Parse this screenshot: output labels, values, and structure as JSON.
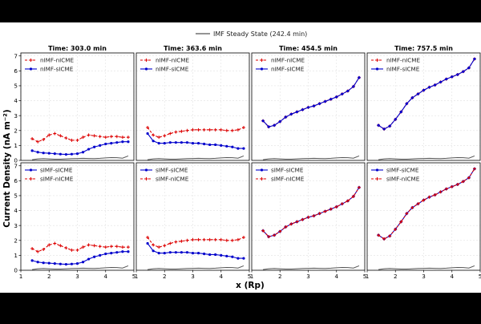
{
  "figure": {
    "top_legend": {
      "label": "IMF Steady State (242.4 min)",
      "color": "#555555"
    },
    "ylabel": "Current Density (nA m⁻²)",
    "xlabel": "x (Rp)"
  },
  "chart_data": {
    "type": "line",
    "xlim": [
      1,
      5
    ],
    "ylim": [
      0,
      7.2
    ],
    "xticks": [
      "1",
      "2",
      "3",
      "4",
      "5"
    ],
    "yticks": [
      "0",
      "1",
      "2",
      "3",
      "4",
      "5",
      "6",
      "7"
    ],
    "grid": true,
    "legend_position": "top-left",
    "x": [
      1.4,
      1.6,
      1.8,
      2.0,
      2.2,
      2.4,
      2.6,
      2.8,
      3.0,
      3.2,
      3.4,
      3.6,
      3.8,
      4.0,
      4.2,
      4.4,
      4.6,
      4.8
    ],
    "steady_state": [
      0.05,
      0.1,
      0.12,
      0.1,
      0.08,
      0.08,
      0.1,
      0.12,
      0.13,
      0.14,
      0.13,
      0.12,
      0.14,
      0.17,
      0.19,
      0.18,
      0.15,
      0.3
    ],
    "times": [
      "Time: 303.0 min",
      "Time: 363.6 min",
      "Time: 454.5 min",
      "Time: 757.5 min"
    ],
    "rows": [
      {
        "legend": [
          "nIMF-nICME",
          "nIMF-sICME"
        ],
        "series_colors": [
          "#dd0000",
          "#0000cc"
        ]
      },
      {
        "legend": [
          "sIMF-sICME",
          "sIMF-nICME"
        ],
        "series_colors": [
          "#0000cc",
          "#dd0000"
        ]
      }
    ],
    "panels": [
      {
        "row": 0,
        "col": 0,
        "series": [
          {
            "values": [
              1.45,
              1.25,
              1.4,
              1.7,
              1.8,
              1.65,
              1.5,
              1.35,
              1.35,
              1.55,
              1.7,
              1.65,
              1.6,
              1.55,
              1.6,
              1.6,
              1.55,
              1.55
            ]
          },
          {
            "values": [
              0.65,
              0.55,
              0.5,
              0.48,
              0.45,
              0.42,
              0.4,
              0.42,
              0.45,
              0.55,
              0.75,
              0.9,
              1.0,
              1.1,
              1.15,
              1.2,
              1.25,
              1.25
            ]
          }
        ]
      },
      {
        "row": 0,
        "col": 1,
        "series": [
          {
            "values": [
              2.2,
              1.7,
              1.55,
              1.65,
              1.8,
              1.9,
              1.95,
              2.0,
              2.05,
              2.05,
              2.05,
              2.05,
              2.05,
              2.05,
              2.0,
              2.0,
              2.05,
              2.2
            ]
          },
          {
            "values": [
              1.8,
              1.3,
              1.15,
              1.15,
              1.2,
              1.2,
              1.2,
              1.2,
              1.15,
              1.15,
              1.1,
              1.05,
              1.05,
              1.0,
              0.95,
              0.9,
              0.8,
              0.8
            ]
          }
        ]
      },
      {
        "row": 0,
        "col": 2,
        "series": [
          {
            "values": [
              2.65,
              2.25,
              2.35,
              2.6,
              2.9,
              3.1,
              3.25,
              3.4,
              3.55,
              3.65,
              3.8,
              3.95,
              4.1,
              4.25,
              4.45,
              4.65,
              4.95,
              5.55
            ]
          },
          {
            "values": [
              2.65,
              2.25,
              2.35,
              2.6,
              2.9,
              3.1,
              3.25,
              3.4,
              3.55,
              3.65,
              3.8,
              3.95,
              4.1,
              4.25,
              4.45,
              4.65,
              4.95,
              5.55
            ]
          }
        ]
      },
      {
        "row": 0,
        "col": 3,
        "series": [
          {
            "values": [
              2.35,
              2.1,
              2.3,
              2.75,
              3.25,
              3.8,
              4.2,
              4.45,
              4.7,
              4.9,
              5.05,
              5.25,
              5.45,
              5.6,
              5.75,
              5.95,
              6.2,
              6.8
            ]
          },
          {
            "values": [
              2.35,
              2.1,
              2.3,
              2.75,
              3.25,
              3.8,
              4.2,
              4.45,
              4.7,
              4.9,
              5.05,
              5.25,
              5.45,
              5.6,
              5.75,
              5.95,
              6.2,
              6.8
            ]
          }
        ]
      },
      {
        "row": 1,
        "col": 0,
        "series": [
          {
            "values": [
              0.65,
              0.55,
              0.5,
              0.48,
              0.45,
              0.42,
              0.4,
              0.42,
              0.45,
              0.55,
              0.75,
              0.9,
              1.0,
              1.1,
              1.15,
              1.2,
              1.25,
              1.25
            ]
          },
          {
            "values": [
              1.45,
              1.25,
              1.4,
              1.7,
              1.8,
              1.65,
              1.5,
              1.35,
              1.35,
              1.55,
              1.7,
              1.65,
              1.6,
              1.55,
              1.6,
              1.6,
              1.55,
              1.55
            ]
          }
        ]
      },
      {
        "row": 1,
        "col": 1,
        "series": [
          {
            "values": [
              1.8,
              1.3,
              1.15,
              1.15,
              1.2,
              1.2,
              1.2,
              1.2,
              1.15,
              1.15,
              1.1,
              1.05,
              1.05,
              1.0,
              0.95,
              0.9,
              0.8,
              0.8
            ]
          },
          {
            "values": [
              2.2,
              1.7,
              1.55,
              1.65,
              1.8,
              1.9,
              1.95,
              2.0,
              2.05,
              2.05,
              2.05,
              2.05,
              2.05,
              2.05,
              2.0,
              2.0,
              2.05,
              2.2
            ]
          }
        ]
      },
      {
        "row": 1,
        "col": 2,
        "series": [
          {
            "values": [
              2.65,
              2.25,
              2.35,
              2.6,
              2.9,
              3.1,
              3.25,
              3.4,
              3.55,
              3.65,
              3.8,
              3.95,
              4.1,
              4.25,
              4.45,
              4.65,
              4.95,
              5.55
            ]
          },
          {
            "values": [
              2.65,
              2.25,
              2.35,
              2.6,
              2.9,
              3.1,
              3.25,
              3.4,
              3.55,
              3.65,
              3.8,
              3.95,
              4.1,
              4.25,
              4.45,
              4.65,
              4.95,
              5.55
            ]
          }
        ]
      },
      {
        "row": 1,
        "col": 3,
        "series": [
          {
            "values": [
              2.35,
              2.1,
              2.3,
              2.75,
              3.25,
              3.8,
              4.2,
              4.45,
              4.7,
              4.9,
              5.05,
              5.25,
              5.45,
              5.6,
              5.75,
              5.95,
              6.2,
              6.8
            ]
          },
          {
            "values": [
              2.35,
              2.1,
              2.3,
              2.75,
              3.25,
              3.8,
              4.2,
              4.45,
              4.7,
              4.9,
              5.05,
              5.25,
              5.45,
              5.6,
              5.75,
              5.95,
              6.2,
              6.8
            ]
          }
        ]
      }
    ]
  }
}
